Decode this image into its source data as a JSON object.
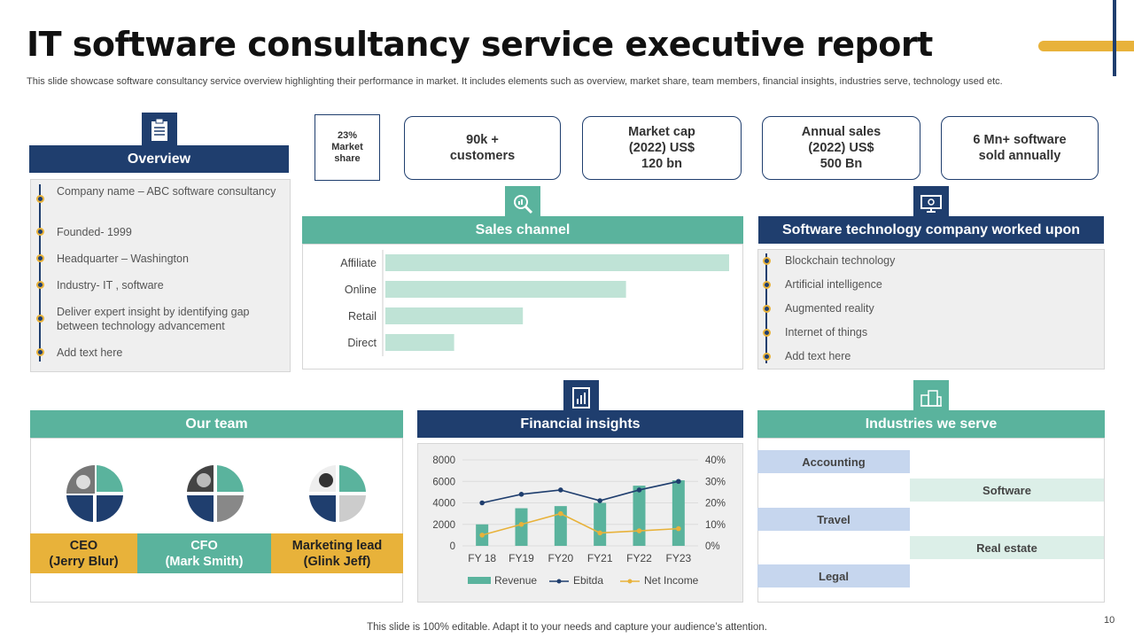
{
  "title": "IT software consultancy service executive report",
  "subtitle": "This slide showcase software consultancy service overview highlighting their performance in market. It includes elements such as overview, market share, team members, financial insights, industries serve, technology used etc.",
  "overview": {
    "header": "Overview",
    "icon": "clipboard-icon",
    "items": [
      "Company name – ABC software consultancy",
      "Founded- 1999",
      "Headquarter – Washington",
      "Industry- IT , software",
      "Deliver expert insight by identifying gap between technology advancement",
      "Add text here"
    ]
  },
  "kpis": {
    "market_share": "23% Market share",
    "customers": "90k + customers",
    "market_cap": "Market cap (2022) US$ 120 bn",
    "annual_sales": "Annual sales (2022) US$ 500 Bn",
    "software_sold": "6 Mn+ software sold annually"
  },
  "sales_channel": {
    "header": "Sales channel",
    "icon": "magnifier-icon"
  },
  "technology": {
    "header": "Software technology company worked upon",
    "icon": "monitor-icon",
    "items": [
      "Blockchain technology",
      "Artificial intelligence",
      "Augmented reality",
      "Internet of things",
      "Add text here"
    ]
  },
  "team": {
    "header": "Our team",
    "members": [
      {
        "role": "CEO",
        "name": "(Jerry Blur)"
      },
      {
        "role": "CFO",
        "name": "(Mark Smith)"
      },
      {
        "role": "Marketing lead",
        "name": "(Glink Jeff)"
      }
    ]
  },
  "financial": {
    "header": "Financial insights",
    "icon": "report-icon"
  },
  "industries": {
    "header": "Industries we serve",
    "icon": "buildings-icon",
    "items": [
      "Accounting",
      "Software",
      "Travel",
      "Real estate",
      "Legal"
    ]
  },
  "footer": "This slide is 100% editable. Adapt it to your needs and capture your audience’s attention.",
  "page_number": "10",
  "colors": {
    "navy": "#1f3e6e",
    "teal": "#5ab39d",
    "gold": "#e8b23a",
    "bar_light": "#bfe3d6"
  },
  "chart_data": [
    {
      "type": "bar",
      "orientation": "horizontal",
      "title": "Sales channel",
      "categories": [
        "Affiliate",
        "Online",
        "Retail",
        "Direct"
      ],
      "values": [
        100,
        70,
        40,
        20
      ],
      "xlim": [
        0,
        100
      ]
    },
    {
      "type": "bar",
      "title": "Financial insights",
      "categories": [
        "FY 18",
        "FY19",
        "FY20",
        "FY21",
        "FY22",
        "FY23"
      ],
      "series": [
        {
          "name": "Revenue",
          "axis": "left",
          "mark": "bar",
          "values": [
            2000,
            3500,
            3700,
            4000,
            5600,
            6100
          ]
        },
        {
          "name": "Ebitda",
          "axis": "right",
          "mark": "line",
          "values": [
            20,
            24,
            26,
            21,
            26,
            30
          ]
        },
        {
          "name": "Net Income",
          "axis": "right",
          "mark": "line",
          "values": [
            5,
            10,
            15,
            6,
            7,
            8
          ]
        }
      ],
      "left_axis": {
        "min": 0,
        "max": 8000,
        "ticks": [
          0,
          2000,
          4000,
          6000,
          8000
        ]
      },
      "right_axis": {
        "min": 0,
        "max": 40,
        "ticks": [
          "0%",
          "10%",
          "20%",
          "30%",
          "40%"
        ]
      }
    }
  ]
}
